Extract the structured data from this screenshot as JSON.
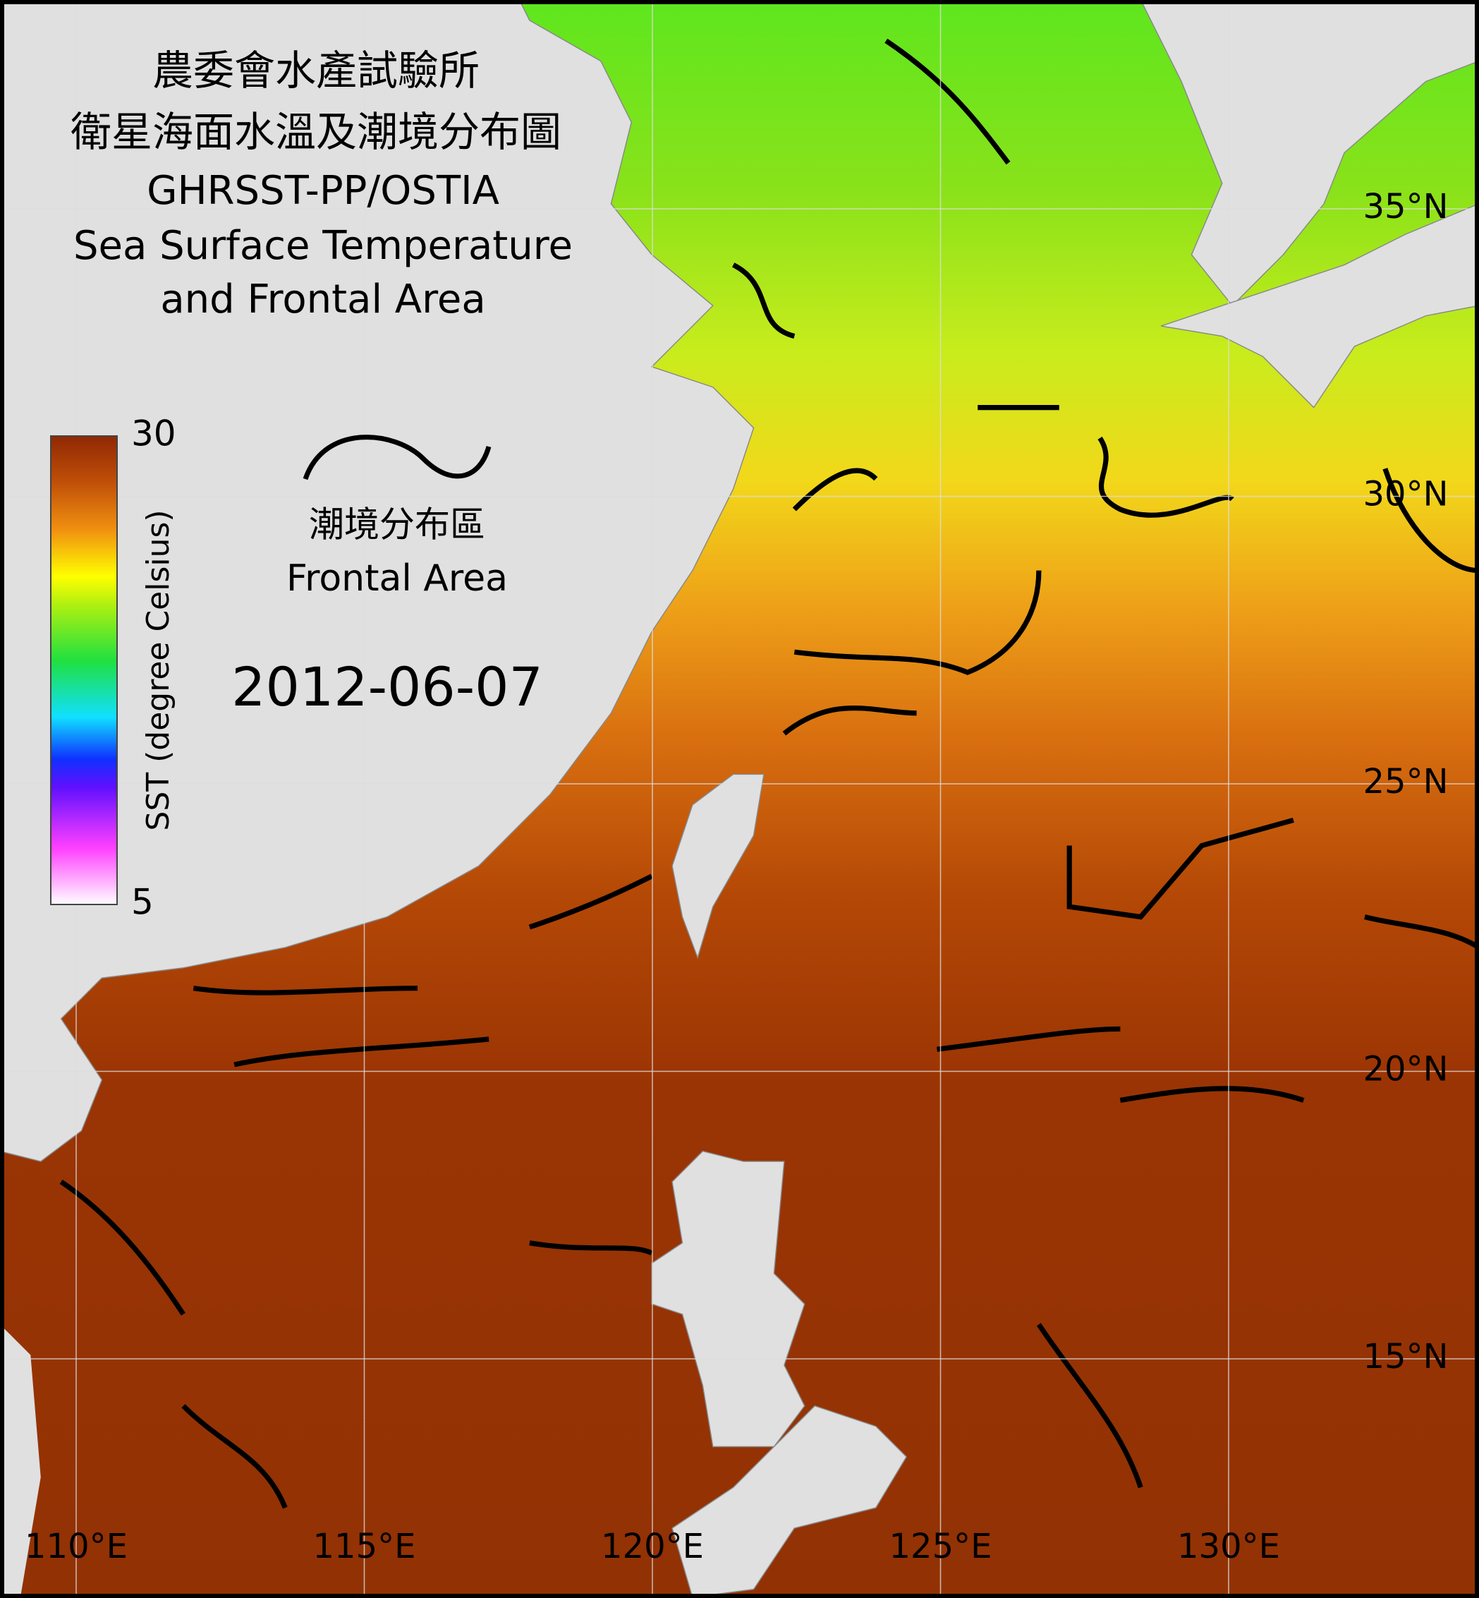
{
  "title": {
    "line1": "農委會水產試驗所",
    "line2": "衛星海面水溫及潮境分布圖",
    "line3": "GHRSST-PP/OSTIA",
    "line4": "Sea Surface Temperature",
    "line5": "and Frontal Area"
  },
  "colorbar": {
    "label": "SST (degree Celsius)",
    "range": [
      5,
      30
    ]
  },
  "legend": {
    "label_zh": "潮境分布區",
    "label_en": "Frontal Area"
  },
  "date": "2012-06-07",
  "graticule": {
    "latitudes": [
      {
        "value": 35,
        "label": "35°N"
      },
      {
        "value": 30,
        "label": "30°N"
      },
      {
        "value": 25,
        "label": "25°N"
      },
      {
        "value": 20,
        "label": "20°N"
      },
      {
        "value": 15,
        "label": "15°N"
      }
    ],
    "longitudes": [
      {
        "value": 110,
        "label": "110°E"
      },
      {
        "value": 115,
        "label": "115°E"
      },
      {
        "value": 120,
        "label": "120°E"
      },
      {
        "value": 125,
        "label": "125°E"
      },
      {
        "value": 130,
        "label": "130°E"
      }
    ]
  }
}
